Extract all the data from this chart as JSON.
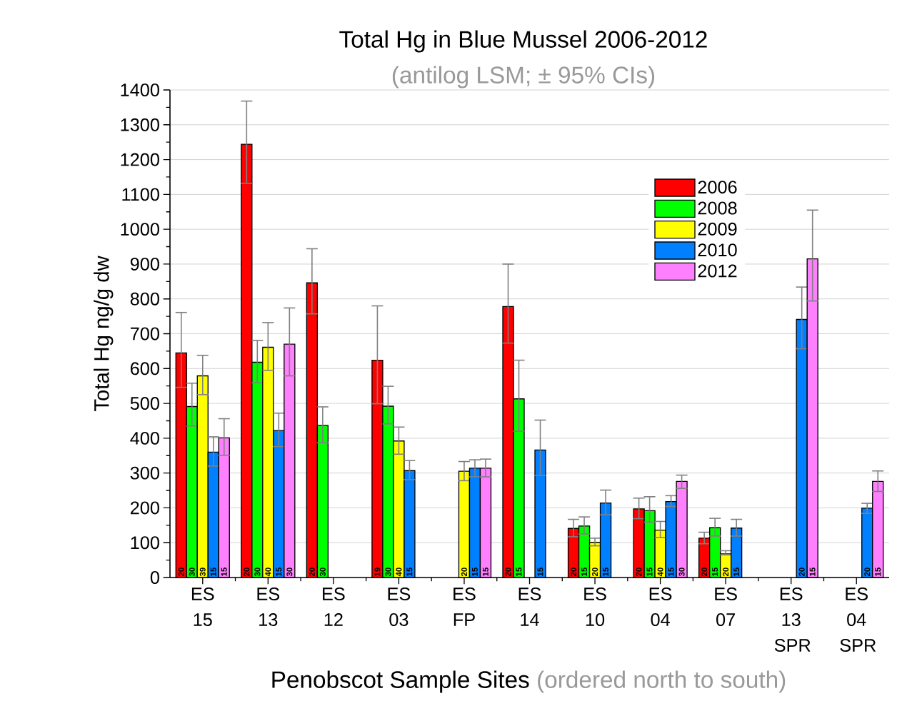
{
  "chart_data": {
    "type": "bar",
    "title": "Total Hg in Blue Mussel 2006-2012",
    "subtitle": "(antilog LSM; ± 95% CIs)",
    "xlabel": "Penobscot Sample Sites",
    "ylabel": "Total Hg ng/g dw",
    "annotations": [
      "(ordered north to south)",
      "20",
      "20",
      "20",
      "19",
      "20",
      "20",
      "20",
      "20",
      "30",
      "30",
      "30",
      "30",
      "15",
      "15",
      "15",
      "15",
      "39",
      "40",
      "40",
      "20",
      "20",
      "40",
      "20",
      "15",
      "15",
      "15",
      "15",
      "15",
      "15",
      "15",
      "15",
      "20",
      "20",
      "15",
      "30",
      "15",
      "30",
      "15",
      "15"
    ],
    "categories": [
      "ES 15",
      "ES 13",
      "ES 12",
      "ES 03",
      "ES FP",
      "ES 14",
      "ES 10",
      "ES 04",
      "ES 07",
      "ES 13 SPR",
      "ES 04 SPR"
    ],
    "series": [
      {
        "name": "2006",
        "color": "#ff0000",
        "values": [
          645,
          1244,
          846,
          624,
          null,
          778,
          141,
          197,
          113,
          null,
          null
        ],
        "errors": [
          [
            546,
            761
          ],
          [
            1132,
            1368
          ],
          [
            757,
            944
          ],
          [
            499,
            780
          ],
          null,
          [
            673,
            900
          ],
          [
            117,
            167
          ],
          [
            169,
            228
          ],
          [
            97,
            130
          ],
          null,
          null
        ]
      },
      {
        "name": "2008",
        "color": "#00ff00",
        "values": [
          491,
          618,
          437,
          492,
          null,
          513,
          148,
          192,
          143,
          null,
          null
        ],
        "errors": [
          [
            435,
            558
          ],
          [
            559,
            681
          ],
          [
            387,
            490
          ],
          [
            441,
            549
          ],
          null,
          [
            420,
            624
          ],
          [
            125,
            174
          ],
          [
            159,
            232
          ],
          [
            119,
            170
          ],
          null,
          null
        ]
      },
      {
        "name": "2009",
        "color": "#ffff00",
        "values": [
          579,
          661,
          null,
          392,
          305,
          null,
          101,
          136,
          68,
          null,
          null
        ],
        "errors": [
          [
            525,
            638
          ],
          [
            595,
            732
          ],
          null,
          [
            354,
            432
          ],
          [
            278,
            333
          ],
          null,
          [
            91,
            113
          ],
          [
            115,
            161
          ],
          [
            65,
            77
          ],
          null,
          null
        ]
      },
      {
        "name": "2010",
        "color": "#0080ff",
        "values": [
          360,
          422,
          null,
          307,
          314,
          366,
          214,
          218,
          142,
          741,
          199
        ],
        "errors": [
          [
            320,
            404
          ],
          [
            376,
            472
          ],
          null,
          [
            281,
            336
          ],
          [
            289,
            338
          ],
          [
            293,
            452
          ],
          [
            180,
            251
          ],
          [
            204,
            235
          ],
          [
            119,
            167
          ],
          [
            657,
            834
          ],
          [
            184,
            213
          ]
        ]
      },
      {
        "name": "2012",
        "color": "#ff80ff",
        "values": [
          401,
          670,
          null,
          null,
          314,
          null,
          null,
          276,
          null,
          915,
          276
        ],
        "errors": [
          [
            351,
            456
          ],
          [
            579,
            774
          ],
          null,
          null,
          [
            289,
            340
          ],
          null,
          null,
          [
            256,
            294
          ],
          null,
          [
            794,
            1055
          ],
          [
            247,
            306
          ]
        ]
      }
    ],
    "ylim": [
      0,
      1400
    ],
    "yticks": [
      0,
      100,
      200,
      300,
      400,
      500,
      600,
      700,
      800,
      900,
      1000,
      1100,
      1200,
      1300,
      1400
    ],
    "grid": "y",
    "legend": "top right"
  }
}
